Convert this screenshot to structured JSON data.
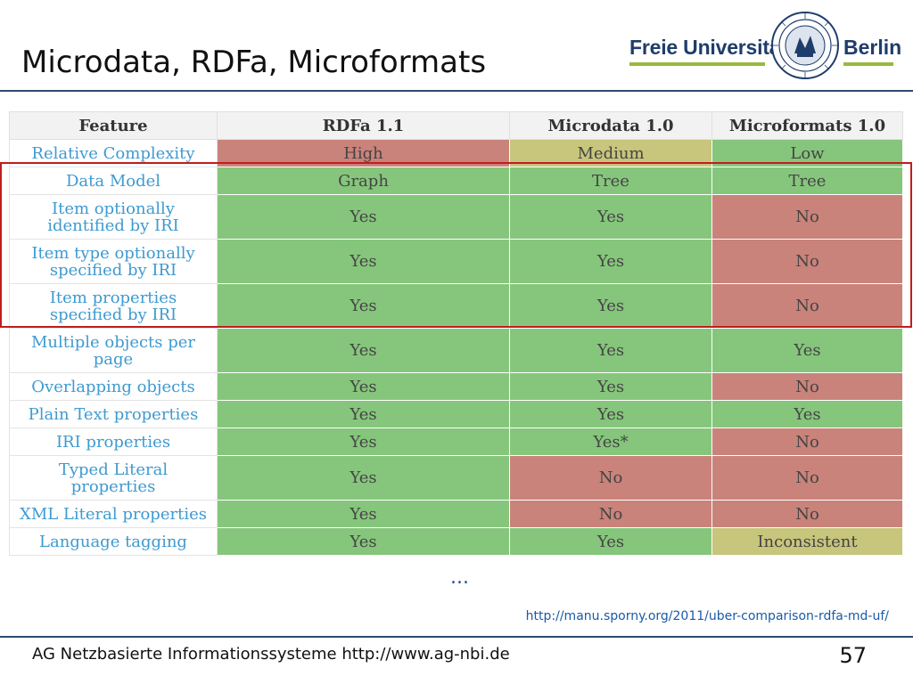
{
  "slide": {
    "title": "Microdata, RDFa, Microformats",
    "logo": {
      "left_text": "Freie Universität",
      "right_text": "Berlin"
    },
    "ellipsis": "...",
    "source_link": "http://manu.sporny.org/2011/uber-comparison-rdfa-md-uf/",
    "footer": "AG Netzbasierte Informationssysteme http://www.ag-nbi.de",
    "page_number": "57"
  },
  "colors": {
    "green": "#86c67c",
    "red": "#c9837a",
    "yellow": "#c8c57c",
    "highlight": "#c01d1d"
  },
  "table": {
    "headers": [
      "Feature",
      "RDFa 1.1",
      "Microdata 1.0",
      "Microformats 1.0"
    ],
    "rows": [
      {
        "feature": [
          "Relative Complexity"
        ],
        "cells": [
          {
            "text": "High",
            "color": "red"
          },
          {
            "text": "Medium",
            "color": "yellow"
          },
          {
            "text": "Low",
            "color": "green"
          }
        ]
      },
      {
        "feature": [
          "Data Model"
        ],
        "cells": [
          {
            "text": "Graph",
            "color": "green"
          },
          {
            "text": "Tree",
            "color": "green"
          },
          {
            "text": "Tree",
            "color": "green"
          }
        ]
      },
      {
        "feature": [
          "Item optionally",
          "identified by IRI"
        ],
        "cells": [
          {
            "text": "Yes",
            "color": "green"
          },
          {
            "text": "Yes",
            "color": "green"
          },
          {
            "text": "No",
            "color": "red"
          }
        ]
      },
      {
        "feature": [
          "Item type optionally",
          "specified by IRI"
        ],
        "cells": [
          {
            "text": "Yes",
            "color": "green"
          },
          {
            "text": "Yes",
            "color": "green"
          },
          {
            "text": "No",
            "color": "red"
          }
        ]
      },
      {
        "feature": [
          "Item properties",
          "specified by IRI"
        ],
        "cells": [
          {
            "text": "Yes",
            "color": "green"
          },
          {
            "text": "Yes",
            "color": "green"
          },
          {
            "text": "No",
            "color": "red"
          }
        ]
      },
      {
        "feature": [
          "Multiple objects per",
          "page"
        ],
        "cells": [
          {
            "text": "Yes",
            "color": "green"
          },
          {
            "text": "Yes",
            "color": "green"
          },
          {
            "text": "Yes",
            "color": "green"
          }
        ]
      },
      {
        "feature": [
          "Overlapping objects"
        ],
        "cells": [
          {
            "text": "Yes",
            "color": "green"
          },
          {
            "text": "Yes",
            "color": "green"
          },
          {
            "text": "No",
            "color": "red"
          }
        ]
      },
      {
        "feature": [
          "Plain Text properties"
        ],
        "cells": [
          {
            "text": "Yes",
            "color": "green"
          },
          {
            "text": "Yes",
            "color": "green"
          },
          {
            "text": "Yes",
            "color": "green"
          }
        ]
      },
      {
        "feature": [
          "IRI properties"
        ],
        "cells": [
          {
            "text": "Yes",
            "color": "green"
          },
          {
            "text": "Yes*",
            "color": "green"
          },
          {
            "text": "No",
            "color": "red"
          }
        ]
      },
      {
        "feature": [
          "Typed Literal",
          "properties"
        ],
        "cells": [
          {
            "text": "Yes",
            "color": "green"
          },
          {
            "text": "No",
            "color": "red"
          },
          {
            "text": "No",
            "color": "red"
          }
        ]
      },
      {
        "feature": [
          "XML Literal properties"
        ],
        "cells": [
          {
            "text": "Yes",
            "color": "green"
          },
          {
            "text": "No",
            "color": "red"
          },
          {
            "text": "No",
            "color": "red"
          }
        ]
      },
      {
        "feature": [
          "Language tagging"
        ],
        "cells": [
          {
            "text": "Yes",
            "color": "green"
          },
          {
            "text": "Yes",
            "color": "green"
          },
          {
            "text": "Inconsistent",
            "color": "yellow"
          }
        ]
      }
    ]
  }
}
